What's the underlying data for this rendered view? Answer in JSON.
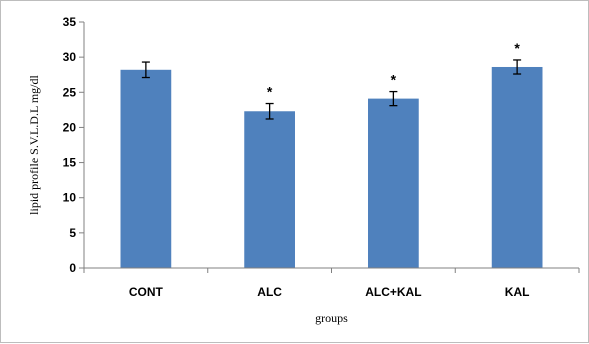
{
  "chart_data": {
    "type": "bar",
    "title": "",
    "xlabel": "groups",
    "ylabel": "lipid profile S.V.L.D.L mg/dl",
    "categories": [
      "CONT",
      "ALC",
      "ALC+KAL",
      "KAL"
    ],
    "values": [
      28.2,
      22.3,
      24.1,
      28.6
    ],
    "errors": [
      1.1,
      1.1,
      1.0,
      1.0
    ],
    "significance": [
      "",
      "*",
      "*",
      "*"
    ],
    "ylim": [
      0,
      35
    ],
    "yticks": [
      "0",
      "5",
      "10",
      "15",
      "20",
      "25",
      "30",
      "35"
    ],
    "grid": false,
    "legend": "none",
    "bar_color": "#4f81bd"
  }
}
